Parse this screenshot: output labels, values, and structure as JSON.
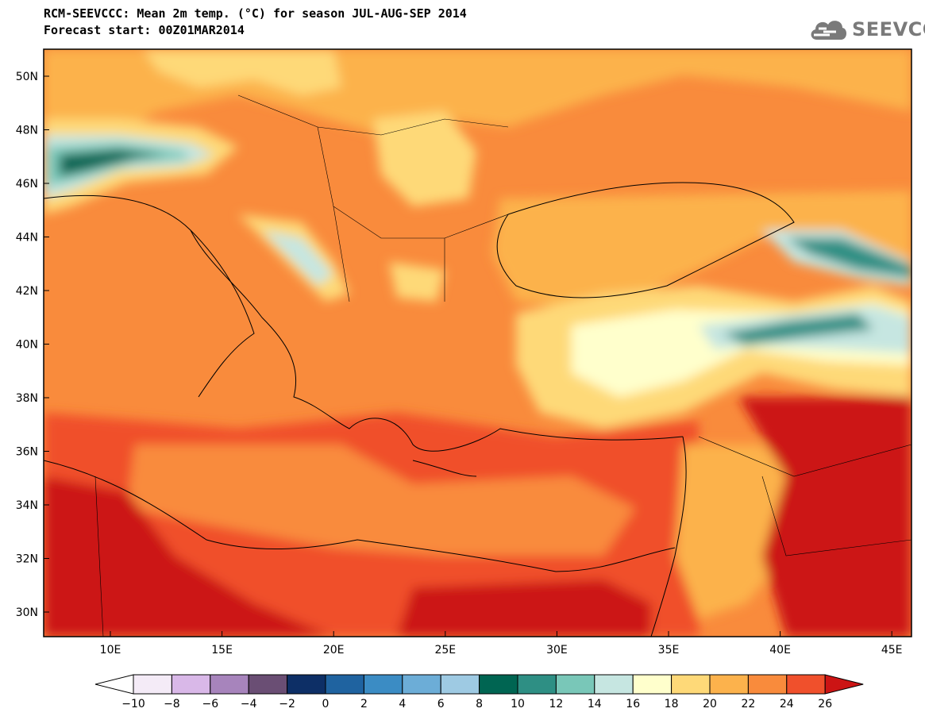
{
  "title": {
    "line1": "RCM-SEEVCCC: Mean 2m temp. (°C) for season JUL-AUG-SEP 2014",
    "line2": "Forecast start: 00Z01MAR2014"
  },
  "logo": {
    "text": "SEEVCCC",
    "icon": "cloud-icon"
  },
  "map": {
    "region": "Eastern Mediterranean / Southeast Europe",
    "lat_range": [
      29,
      51
    ],
    "lon_range": [
      7,
      46
    ],
    "lat_ticks": [
      "50N",
      "48N",
      "46N",
      "44N",
      "42N",
      "40N",
      "38N",
      "36N",
      "34N",
      "32N",
      "30N"
    ],
    "lon_ticks": [
      "10E",
      "15E",
      "20E",
      "25E",
      "30E",
      "35E",
      "40E",
      "45E"
    ]
  },
  "colorbar": {
    "labels": [
      "−10",
      "−8",
      "−6",
      "−4",
      "−2",
      "0",
      "2",
      "4",
      "6",
      "8",
      "10",
      "12",
      "14",
      "16",
      "18",
      "20",
      "22",
      "24",
      "26"
    ],
    "colors": [
      "#f4ebf7",
      "#d9b8e8",
      "#a784bc",
      "#6a4e74",
      "#0d2f66",
      "#1f63a0",
      "#3b8cc4",
      "#6cadd7",
      "#9ecae3",
      "#006552",
      "#2e8f84",
      "#79c7b8",
      "#c6e6e1",
      "#ffffcc",
      "#fed978",
      "#fcb24c",
      "#f98b3c",
      "#f0502c"
    ],
    "under_color": "#ffffff",
    "over_color": "#cc1414"
  }
}
